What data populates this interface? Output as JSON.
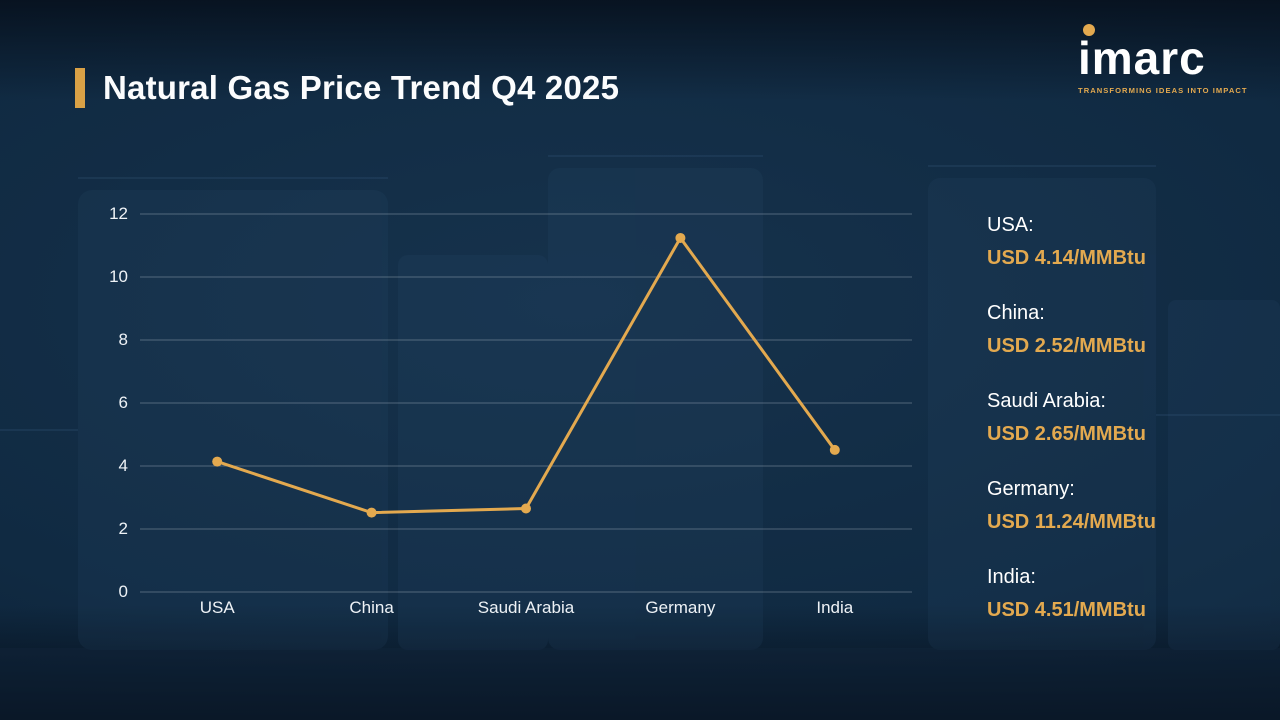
{
  "title": "Natural Gas Price Trend Q4 2025",
  "logo": {
    "text": "imarc",
    "tagline": "TRANSFORMING IDEAS INTO IMPACT"
  },
  "colors": {
    "accent_gold": "#E3A94F",
    "background_navy": "#102A42",
    "text_white": "#FFFFFF"
  },
  "chart_data": {
    "type": "line",
    "categories": [
      "USA",
      "China",
      "Saudi Arabia",
      "Germany",
      "India"
    ],
    "values": [
      4.14,
      2.52,
      2.65,
      11.24,
      4.51
    ],
    "title": "Natural Gas Price Trend Q4 2025",
    "xlabel": "",
    "ylabel": "",
    "ylim": [
      0,
      12
    ],
    "yticks": [
      0,
      2,
      4,
      6,
      8,
      10,
      12
    ],
    "grid": true,
    "legend": false,
    "line_color": "#E3A94F",
    "unit": "USD/MMBtu"
  },
  "price_list": [
    {
      "label": "USA:",
      "value": "USD 4.14/MMBtu"
    },
    {
      "label": "China:",
      "value": "USD 2.52/MMBtu"
    },
    {
      "label": "Saudi Arabia:",
      "value": "USD 2.65/MMBtu"
    },
    {
      "label": "Germany:",
      "value": "USD 11.24/MMBtu"
    },
    {
      "label": "India:",
      "value": "USD 4.51/MMBtu"
    }
  ]
}
